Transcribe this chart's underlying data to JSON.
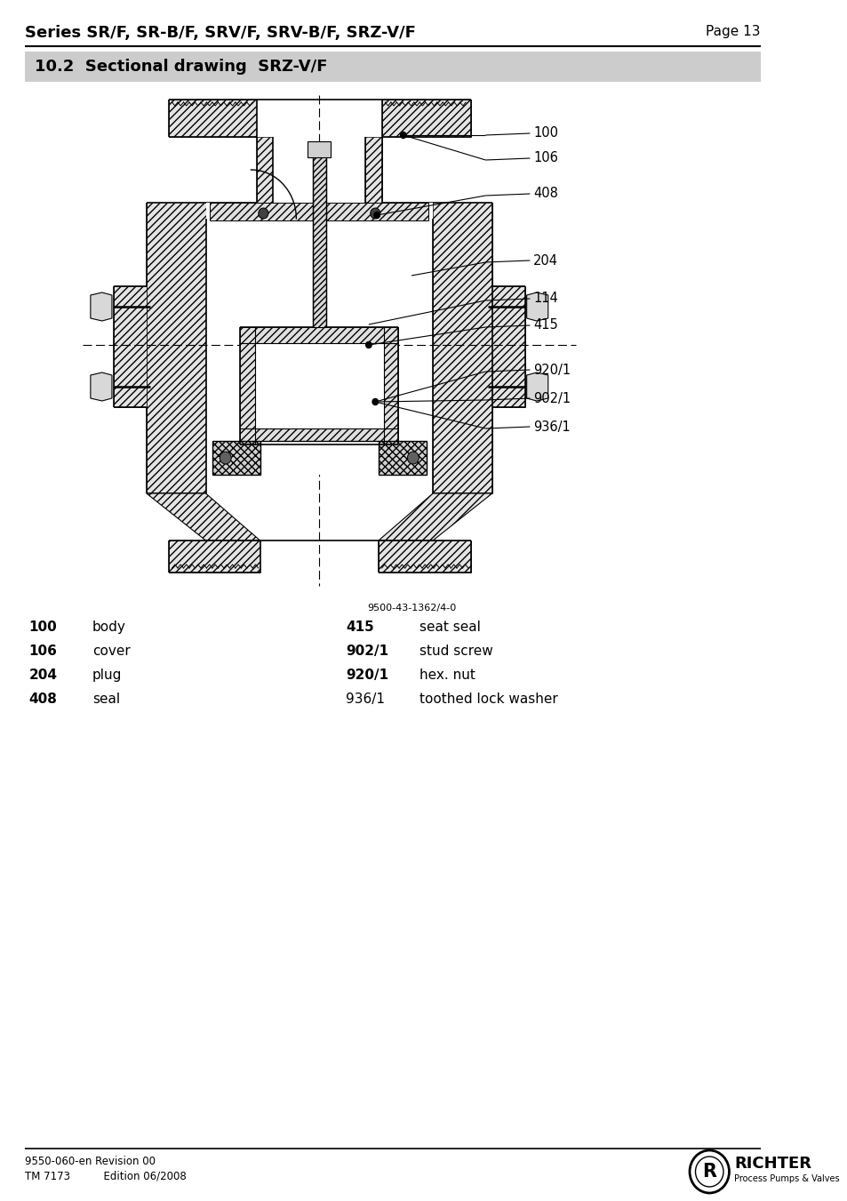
{
  "page_title": "Series SR/F, SR-B/F, SRV/F, SRV-B/F, SRZ-V/F",
  "page_number": "Page 13",
  "section_title": "10.2  Sectional drawing  SRZ-V/F",
  "drawing_ref": "9500-43-1362/4-0",
  "parts_left": [
    {
      "num": "100",
      "desc": "body"
    },
    {
      "num": "106",
      "desc": "cover"
    },
    {
      "num": "204",
      "desc": "plug"
    },
    {
      "num": "408",
      "desc": "seal"
    }
  ],
  "parts_right": [
    {
      "num": "415",
      "desc": "seat seal",
      "bold": true
    },
    {
      "num": "902/1",
      "desc": "stud screw",
      "bold": true
    },
    {
      "num": "920/1",
      "desc": "hex. nut",
      "bold": true
    },
    {
      "num": "936/1",
      "desc": "toothed lock washer",
      "bold": false
    }
  ],
  "footer_left1": "9550-060-en Revision 00",
  "footer_left2": "TM 7173          Edition 06/2008",
  "bg_color": "#ffffff",
  "section_bg_color": "#cccccc"
}
